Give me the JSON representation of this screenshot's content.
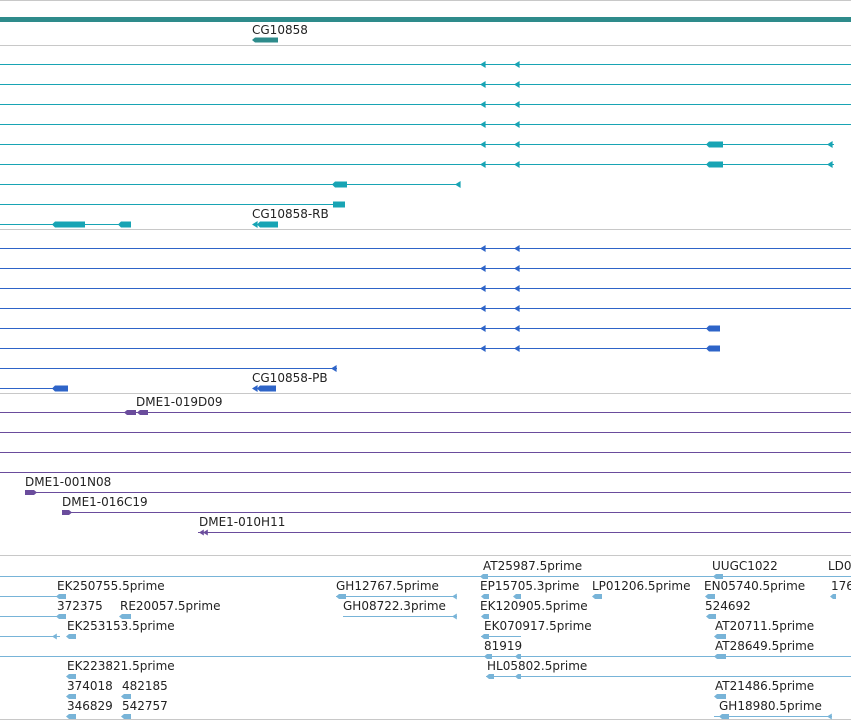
{
  "colors": {
    "gene": "#2e8b8b",
    "teal": "#18a4b4",
    "blue": "#2e64c8",
    "purple": "#6a4c9c",
    "est": "#78b4d8",
    "separator": "#c8c8c8"
  },
  "tracks": {
    "gene": {
      "name": "CG10858"
    },
    "transcripts_a": {
      "name": "CG10858-RB"
    },
    "transcripts_b": {
      "name": "CG10858-PB"
    },
    "clones": {
      "labels": [
        "DME1-019D09",
        "DME1-001N08",
        "DME1-016C19",
        "DME1-010H11"
      ]
    },
    "ests": {
      "labels": [
        "AT25987.5prime",
        "UUGC1022",
        "LD0",
        "EK250755.5prime",
        "GH12767.5prime",
        "EP15705.3prime",
        "LP01206.5prime",
        "EN05740.5prime",
        "176",
        "372375",
        "RE20057.5prime",
        "GH08722.3prime",
        "EK120905.5prime",
        "524692",
        "EK253153.5prime",
        "EK070917.5prime",
        "AT20711.5prime",
        "81919",
        "AT28649.5prime",
        "EK223821.5prime",
        "HL05802.5prime",
        "374018",
        "482185",
        "AT21486.5prime",
        "346829",
        "542757",
        "GH18980.5prime"
      ]
    }
  }
}
